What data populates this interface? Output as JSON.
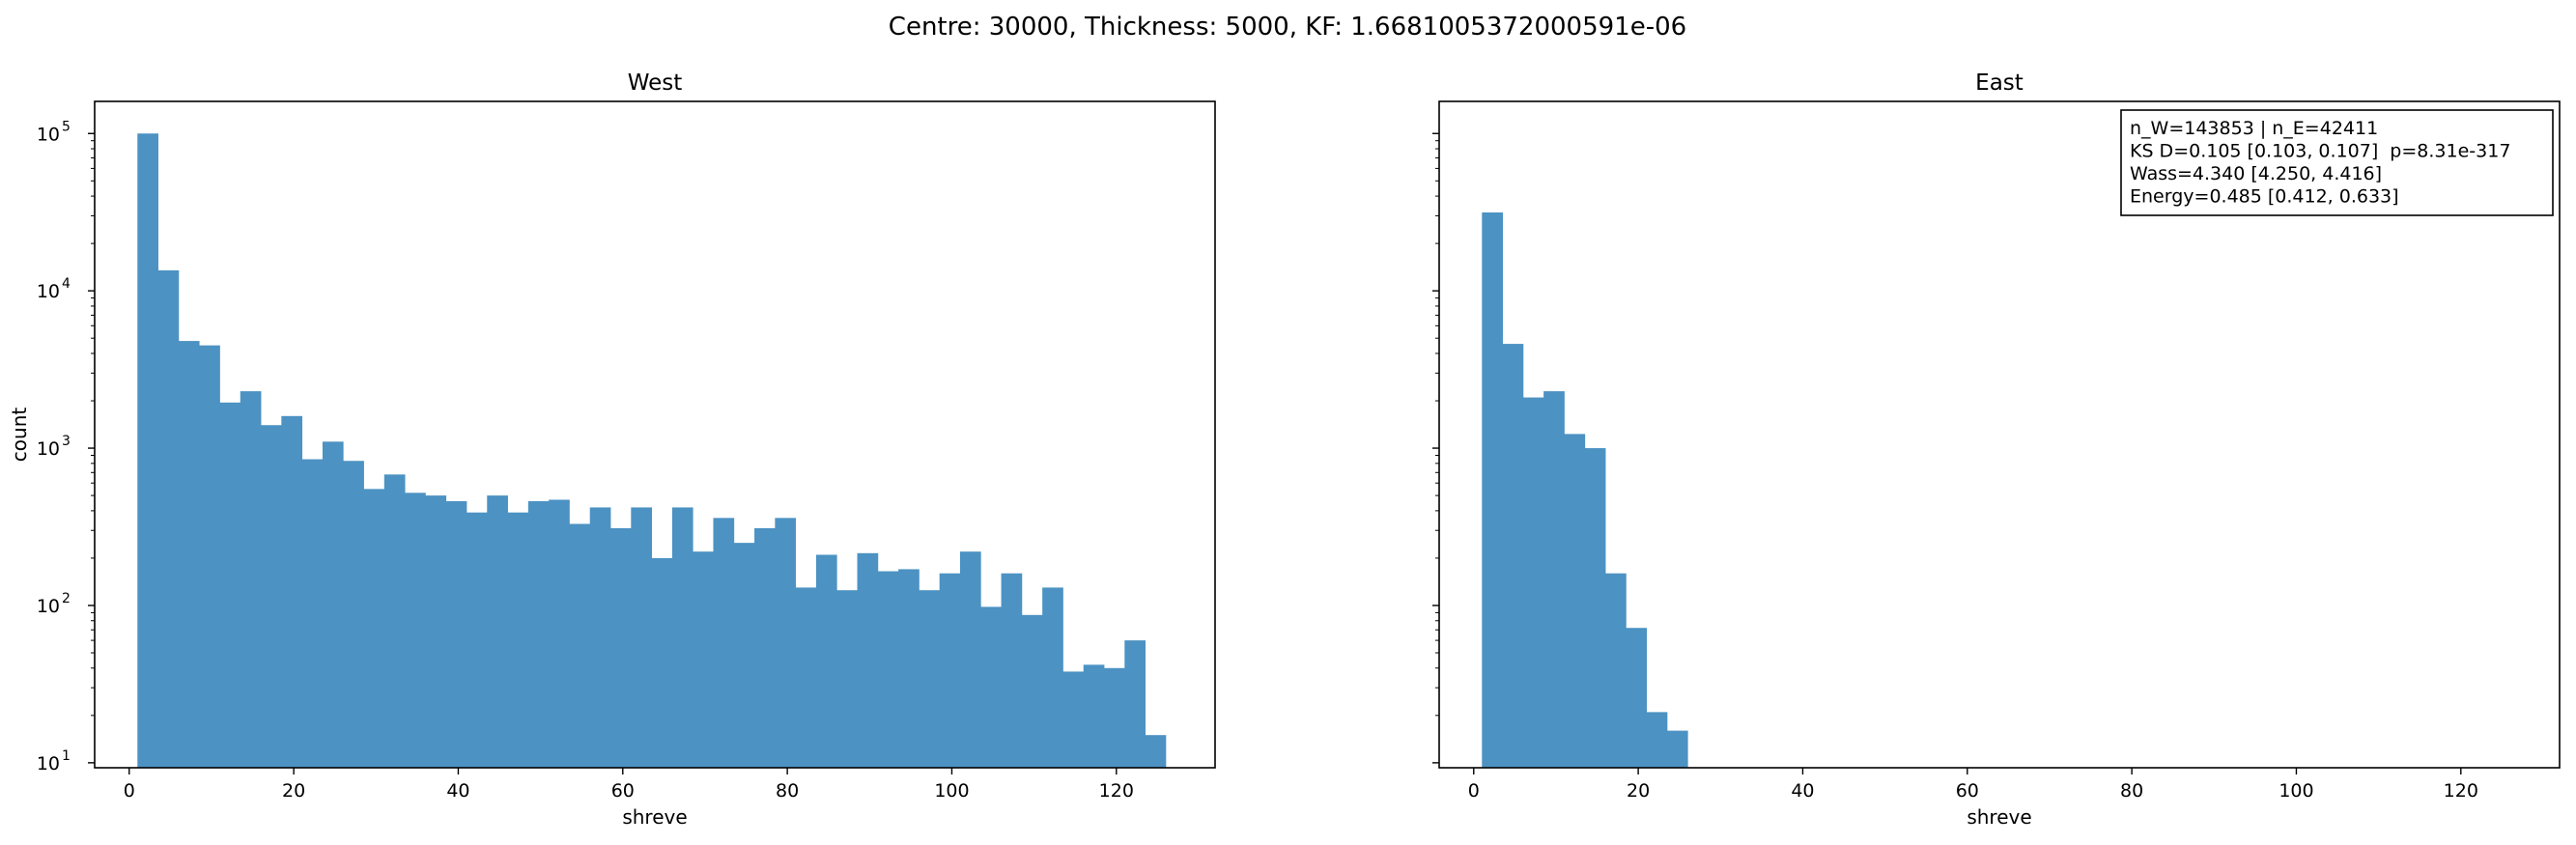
{
  "suptitle": "Centre: 30000, Thickness: 5000, KF: 1.6681005372000591e-06",
  "colors": {
    "bar": "#4c92c3",
    "axis": "#000000"
  },
  "chart_data": [
    {
      "type": "bar",
      "title": "West",
      "xlabel": "shreve",
      "ylabel": "count",
      "log_y": true,
      "grid": false,
      "xlim": [
        -4.2,
        132
      ],
      "ylim": [
        9.3,
        160000
      ],
      "x_ticks": [
        0,
        20,
        40,
        60,
        80,
        100,
        120
      ],
      "y_ticks": [
        {
          "value": 10,
          "base": "10",
          "exp": "1"
        },
        {
          "value": 100,
          "base": "10",
          "exp": "2"
        },
        {
          "value": 1000,
          "base": "10",
          "exp": "3"
        },
        {
          "value": 10000,
          "base": "10",
          "exp": "4"
        },
        {
          "value": 100000,
          "base": "10",
          "exp": "5"
        }
      ],
      "bin_start": 1,
      "bin_width": 2.5,
      "values": [
        100000,
        13500,
        4800,
        4500,
        1950,
        2300,
        1400,
        1600,
        850,
        1100,
        830,
        550,
        680,
        520,
        500,
        460,
        390,
        500,
        390,
        460,
        470,
        330,
        420,
        310,
        420,
        200,
        420,
        220,
        360,
        250,
        310,
        360,
        130,
        210,
        125,
        215,
        165,
        170,
        125,
        160,
        220,
        98,
        160,
        87,
        130,
        38,
        42,
        40,
        60,
        15
      ]
    },
    {
      "type": "bar",
      "title": "East",
      "xlabel": "shreve",
      "ylabel": "",
      "log_y": true,
      "grid": false,
      "xlim": [
        -4.2,
        132
      ],
      "ylim": [
        9.3,
        160000
      ],
      "x_ticks": [
        0,
        20,
        40,
        60,
        80,
        100,
        120
      ],
      "bin_start": 1,
      "bin_width": 2.5,
      "values": [
        31500,
        4600,
        2100,
        2300,
        1230,
        1000,
        160,
        72,
        21,
        16
      ],
      "annotation": [
        "n_W=143853 | n_E=42411",
        "KS D=0.105 [0.103, 0.107]  p=8.31e-317",
        "Wass=4.340 [4.250, 4.416]",
        "Energy=0.485 [0.412, 0.633]"
      ]
    }
  ]
}
